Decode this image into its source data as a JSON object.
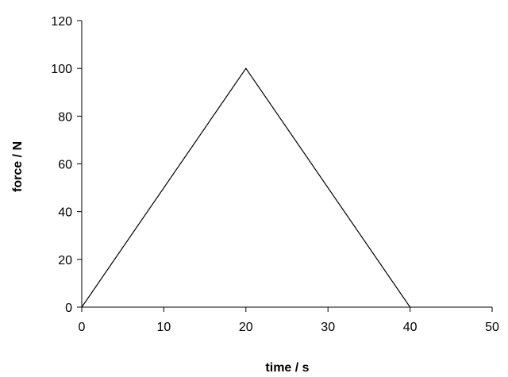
{
  "chart_data": {
    "type": "line",
    "title": "",
    "xlabel": "time / s",
    "ylabel": "force / N",
    "xlim": [
      0,
      50
    ],
    "ylim": [
      0,
      120
    ],
    "x_ticks": [
      0,
      10,
      20,
      30,
      40,
      50
    ],
    "y_ticks": [
      0,
      20,
      40,
      60,
      80,
      100,
      120
    ],
    "grid": false,
    "legend": "none",
    "series": [
      {
        "x": [
          0,
          20,
          40
        ],
        "y": [
          0,
          100,
          0
        ],
        "color": "#000000"
      }
    ]
  }
}
